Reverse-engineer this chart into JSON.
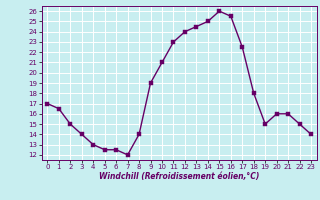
{
  "x": [
    0,
    1,
    2,
    3,
    4,
    5,
    6,
    7,
    8,
    9,
    10,
    11,
    12,
    13,
    14,
    15,
    16,
    17,
    18,
    19,
    20,
    21,
    22,
    23
  ],
  "y": [
    17,
    16.5,
    15,
    14,
    13,
    12.5,
    12.5,
    12,
    14,
    19,
    21,
    23,
    24,
    24.5,
    25,
    26,
    25.5,
    22.5,
    18,
    15,
    16,
    16,
    15,
    14
  ],
  "line_color": "#660066",
  "marker_color": "#660066",
  "bg_color": "#c8eef0",
  "grid_color": "#ffffff",
  "xlim": [
    -0.5,
    23.5
  ],
  "ylim": [
    11.5,
    26.5
  ],
  "yticks": [
    12,
    13,
    14,
    15,
    16,
    17,
    18,
    19,
    20,
    21,
    22,
    23,
    24,
    25,
    26
  ],
  "xticks": [
    0,
    1,
    2,
    3,
    4,
    5,
    6,
    7,
    8,
    9,
    10,
    11,
    12,
    13,
    14,
    15,
    16,
    17,
    18,
    19,
    20,
    21,
    22,
    23
  ],
  "xlabel": "Windchill (Refroidissement éolien,°C)",
  "line_width": 1.0,
  "marker_size": 2.5,
  "tick_fontsize": 5,
  "xlabel_fontsize": 5.5
}
